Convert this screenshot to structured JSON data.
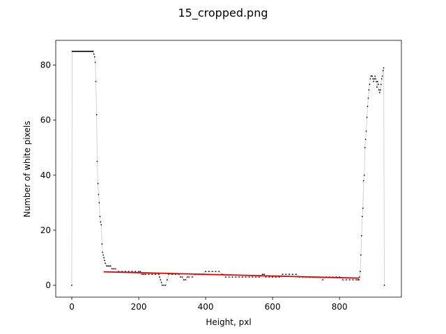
{
  "chart_data": {
    "type": "line",
    "title": "15_cropped.png",
    "xlabel": "Height, pxl",
    "ylabel": "Number of white pixels",
    "xlim": [
      -48,
      985
    ],
    "ylim": [
      -4.3,
      89
    ],
    "xticks": [
      0,
      200,
      400,
      600,
      800
    ],
    "yticks": [
      0,
      20,
      40,
      60,
      80
    ],
    "grid": false,
    "series": [
      {
        "style": "points",
        "color": "#000000",
        "line_color": "#c8c8c8",
        "x": [
          0,
          1,
          2,
          4,
          6,
          8,
          10,
          12,
          14,
          16,
          18,
          20,
          22,
          24,
          26,
          28,
          30,
          32,
          34,
          36,
          38,
          40,
          42,
          44,
          46,
          48,
          50,
          52,
          54,
          56,
          58,
          60,
          62,
          64,
          66,
          68,
          70,
          72,
          74,
          76,
          78,
          80,
          82,
          84,
          86,
          88,
          90,
          92,
          94,
          96,
          98,
          100,
          104,
          108,
          112,
          116,
          120,
          125,
          130,
          140,
          150,
          160,
          170,
          180,
          190,
          200,
          205,
          210,
          215,
          220,
          230,
          240,
          250,
          260,
          262,
          265,
          268,
          270,
          275,
          280,
          285,
          290,
          300,
          310,
          320,
          325,
          330,
          335,
          340,
          345,
          350,
          360,
          370,
          380,
          390,
          400,
          410,
          420,
          430,
          440,
          450,
          460,
          470,
          480,
          490,
          500,
          510,
          520,
          530,
          540,
          550,
          560,
          570,
          575,
          580,
          590,
          600,
          610,
          620,
          630,
          640,
          650,
          660,
          670,
          680,
          690,
          700,
          710,
          720,
          730,
          740,
          750,
          760,
          770,
          780,
          790,
          800,
          810,
          820,
          830,
          840,
          850,
          855,
          858,
          860,
          862,
          864,
          866,
          868,
          870,
          872,
          874,
          876,
          878,
          880,
          882,
          884,
          886,
          888,
          890,
          892,
          894,
          896,
          898,
          900,
          902,
          904,
          906,
          908,
          910,
          912,
          914,
          916,
          918,
          920,
          922,
          924,
          926,
          928,
          930,
          932,
          934
        ],
        "y": [
          0,
          85,
          85,
          85,
          85,
          85,
          85,
          85,
          85,
          85,
          85,
          85,
          85,
          85,
          85,
          85,
          85,
          85,
          85,
          85,
          85,
          85,
          85,
          85,
          85,
          85,
          85,
          85,
          85,
          85,
          85,
          85,
          85,
          85,
          84,
          83,
          81,
          74,
          62,
          45,
          37,
          33,
          30,
          25,
          23,
          22,
          15,
          12,
          11,
          10,
          9,
          8,
          7,
          7,
          7,
          7,
          6,
          6,
          6,
          5,
          5,
          5,
          5,
          5,
          5,
          5,
          5,
          4,
          4,
          4,
          4,
          4,
          4,
          4,
          3,
          2,
          1,
          0,
          0,
          0,
          2,
          4,
          4,
          4,
          4,
          3,
          3,
          2,
          2,
          3,
          3,
          3,
          4,
          4,
          4,
          5,
          5,
          5,
          5,
          5,
          4,
          3,
          3,
          3,
          3,
          3,
          3,
          3,
          3,
          3,
          3,
          3,
          4,
          4,
          3,
          3,
          3,
          3,
          3,
          4,
          4,
          4,
          4,
          4,
          3,
          3,
          3,
          3,
          3,
          3,
          3,
          2,
          3,
          3,
          3,
          3,
          3,
          2,
          2,
          2,
          2,
          2,
          2,
          2,
          3,
          5,
          11,
          18,
          25,
          28,
          38,
          40,
          50,
          53,
          56,
          61,
          65,
          68,
          71,
          73,
          75,
          76,
          76,
          76,
          75,
          74,
          75,
          76,
          75,
          74,
          72,
          74,
          73,
          71,
          70,
          71,
          73,
          75,
          76,
          78,
          79,
          0
        ]
      },
      {
        "style": "fit-line",
        "color": "#e00000",
        "x": [
          95,
          858
        ],
        "y": [
          4.9,
          2.6
        ]
      }
    ]
  }
}
